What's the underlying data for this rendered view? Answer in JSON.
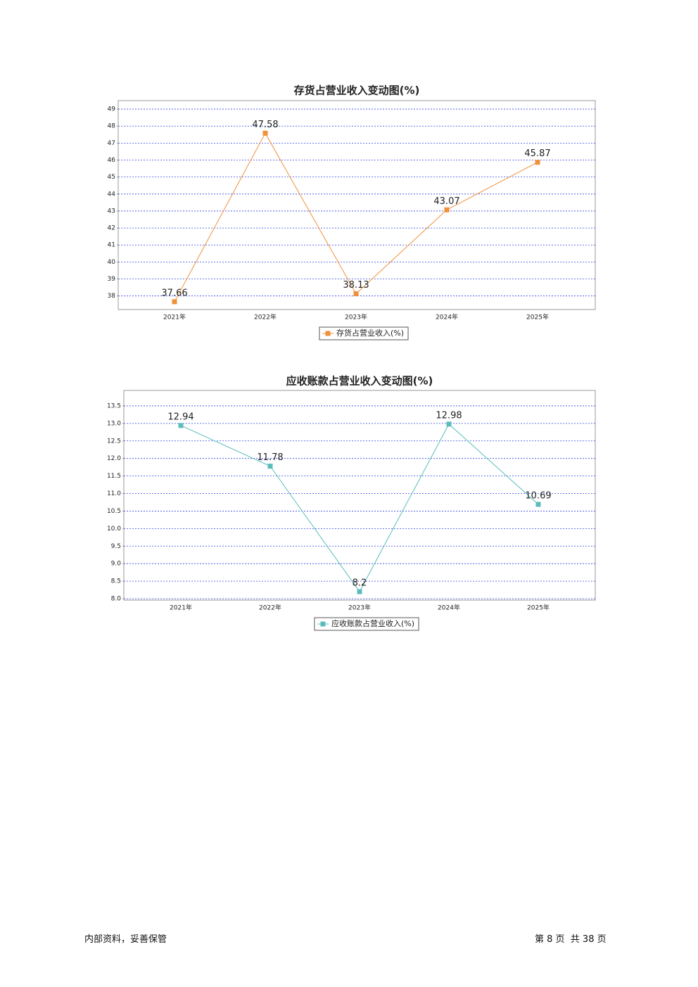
{
  "chart_data": [
    {
      "type": "line",
      "title": "存货占营业收入变动图(%)",
      "categories": [
        "2021年",
        "2022年",
        "2023年",
        "2024年",
        "2025年"
      ],
      "series": [
        {
          "name": "存货占营业收入(%)",
          "color": "#f0913a",
          "values": [
            37.66,
            47.58,
            38.13,
            43.07,
            45.87
          ]
        }
      ],
      "ylim": [
        37.2,
        49.5
      ],
      "yticks": [
        38,
        39,
        40,
        41,
        42,
        43,
        44,
        45,
        46,
        47,
        48,
        49
      ],
      "grid": true
    },
    {
      "type": "line",
      "title": "应收账款占营业收入变动图(%)",
      "categories": [
        "2021年",
        "2022年",
        "2023年",
        "2024年",
        "2025年"
      ],
      "series": [
        {
          "name": "应收账款占营业收入(%)",
          "color": "#5bbcbc",
          "values": [
            12.94,
            11.78,
            8.2,
            12.98,
            10.69
          ]
        }
      ],
      "ylim": [
        7.96,
        13.94
      ],
      "yticks": [
        {
          "value": 8,
          "label": "8.0"
        },
        8.5,
        {
          "value": 9,
          "label": "9.0"
        },
        9.5,
        {
          "value": 10,
          "label": "10.0"
        },
        10.5,
        {
          "value": 11,
          "label": "11.0"
        },
        11.5,
        {
          "value": 12,
          "label": "12.0"
        },
        12.5,
        {
          "value": 13,
          "label": "13.0"
        },
        13.5
      ],
      "grid": true
    }
  ],
  "footer": {
    "left": "内部资料，妥善保管",
    "right": "第 8 页  共 38 页"
  }
}
